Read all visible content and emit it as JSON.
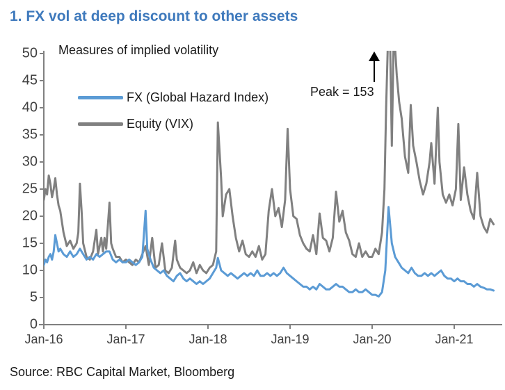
{
  "header": {
    "title": "1. FX vol at deep discount to other assets",
    "title_color": "#3E79BC"
  },
  "footer": {
    "source": "Source: RBC Capital Market, Bloomberg"
  },
  "chart_data": {
    "type": "line",
    "subtitle": "Measures of implied volatility",
    "grid": "off",
    "legend_position": "upper-left-inside",
    "axis_color": "#808080",
    "tick_label_color": "#404040",
    "x_axis": {
      "tick_labels": [
        "Jan-16",
        "Jan-17",
        "Jan-18",
        "Jan-19",
        "Jan-20",
        "Jan-21"
      ],
      "tick_positions_years": [
        0,
        1,
        2,
        3,
        4,
        5
      ],
      "range_years": [
        0,
        5.58
      ]
    },
    "y_axis": {
      "ticks": [
        0,
        5,
        10,
        15,
        20,
        25,
        30,
        35,
        40,
        45,
        50
      ],
      "range": [
        0,
        50
      ]
    },
    "annotation": {
      "text": "Peak = 153",
      "symbol": "up-arrow",
      "refers_to": "Equity (VIX) Mar-2020 spike clipped at top of axis"
    },
    "series": [
      {
        "name": "FX (Global Hazard Index)",
        "color": "#5B9BD5",
        "points": [
          [
            0.0,
            11
          ],
          [
            0.02,
            12
          ],
          [
            0.04,
            11.5
          ],
          [
            0.06,
            12.5
          ],
          [
            0.08,
            13
          ],
          [
            0.1,
            12
          ],
          [
            0.12,
            13.5
          ],
          [
            0.14,
            16.5
          ],
          [
            0.16,
            15
          ],
          [
            0.18,
            13.5
          ],
          [
            0.2,
            14
          ],
          [
            0.24,
            13
          ],
          [
            0.28,
            12.5
          ],
          [
            0.32,
            13.5
          ],
          [
            0.36,
            12.5
          ],
          [
            0.4,
            13
          ],
          [
            0.44,
            14
          ],
          [
            0.48,
            13
          ],
          [
            0.52,
            12
          ],
          [
            0.56,
            12.5
          ],
          [
            0.6,
            12
          ],
          [
            0.64,
            13
          ],
          [
            0.68,
            12.5
          ],
          [
            0.72,
            13
          ],
          [
            0.76,
            13.5
          ],
          [
            0.8,
            13.5
          ],
          [
            0.84,
            12
          ],
          [
            0.88,
            11.5
          ],
          [
            0.92,
            12
          ],
          [
            0.96,
            11.5
          ],
          [
            1.0,
            11.5
          ],
          [
            1.04,
            12
          ],
          [
            1.08,
            11.5
          ],
          [
            1.12,
            11
          ],
          [
            1.16,
            11.5
          ],
          [
            1.2,
            12.5
          ],
          [
            1.24,
            21
          ],
          [
            1.26,
            14
          ],
          [
            1.3,
            12
          ],
          [
            1.34,
            10.5
          ],
          [
            1.38,
            10
          ],
          [
            1.42,
            9.5
          ],
          [
            1.46,
            10
          ],
          [
            1.5,
            9
          ],
          [
            1.54,
            8.5
          ],
          [
            1.58,
            8
          ],
          [
            1.62,
            9
          ],
          [
            1.66,
            9.5
          ],
          [
            1.7,
            8.5
          ],
          [
            1.74,
            8
          ],
          [
            1.78,
            8.5
          ],
          [
            1.82,
            8
          ],
          [
            1.86,
            7.5
          ],
          [
            1.9,
            8
          ],
          [
            1.94,
            7.5
          ],
          [
            1.98,
            8
          ],
          [
            2.02,
            8.5
          ],
          [
            2.06,
            9.5
          ],
          [
            2.1,
            10.5
          ],
          [
            2.12,
            12.3
          ],
          [
            2.16,
            10
          ],
          [
            2.2,
            9.5
          ],
          [
            2.24,
            9
          ],
          [
            2.28,
            9.5
          ],
          [
            2.32,
            9
          ],
          [
            2.36,
            8.5
          ],
          [
            2.4,
            9
          ],
          [
            2.44,
            9.5
          ],
          [
            2.48,
            9
          ],
          [
            2.52,
            9.5
          ],
          [
            2.56,
            9
          ],
          [
            2.6,
            10
          ],
          [
            2.64,
            9
          ],
          [
            2.68,
            9
          ],
          [
            2.72,
            9.5
          ],
          [
            2.76,
            9
          ],
          [
            2.8,
            9.5
          ],
          [
            2.84,
            9
          ],
          [
            2.88,
            9.5
          ],
          [
            2.92,
            10.5
          ],
          [
            2.96,
            9.5
          ],
          [
            3.0,
            9
          ],
          [
            3.04,
            8.5
          ],
          [
            3.08,
            8
          ],
          [
            3.12,
            7.5
          ],
          [
            3.16,
            7
          ],
          [
            3.2,
            7
          ],
          [
            3.24,
            6.5
          ],
          [
            3.28,
            7
          ],
          [
            3.32,
            6.5
          ],
          [
            3.36,
            7.5
          ],
          [
            3.4,
            7
          ],
          [
            3.44,
            6.5
          ],
          [
            3.48,
            6.5
          ],
          [
            3.52,
            7
          ],
          [
            3.56,
            7.5
          ],
          [
            3.6,
            7
          ],
          [
            3.64,
            7
          ],
          [
            3.68,
            6.5
          ],
          [
            3.72,
            6
          ],
          [
            3.76,
            6
          ],
          [
            3.8,
            6.5
          ],
          [
            3.84,
            6
          ],
          [
            3.88,
            6
          ],
          [
            3.92,
            6.5
          ],
          [
            3.96,
            6
          ],
          [
            4.0,
            5.5
          ],
          [
            4.04,
            5.5
          ],
          [
            4.08,
            5.2
          ],
          [
            4.12,
            6
          ],
          [
            4.16,
            10
          ],
          [
            4.2,
            21.7
          ],
          [
            4.24,
            15
          ],
          [
            4.28,
            12.5
          ],
          [
            4.32,
            11.5
          ],
          [
            4.36,
            10.5
          ],
          [
            4.4,
            10
          ],
          [
            4.44,
            9.5
          ],
          [
            4.48,
            10.5
          ],
          [
            4.52,
            9.5
          ],
          [
            4.56,
            9
          ],
          [
            4.6,
            9
          ],
          [
            4.64,
            9.5
          ],
          [
            4.68,
            9
          ],
          [
            4.72,
            9.5
          ],
          [
            4.76,
            9
          ],
          [
            4.8,
            9.5
          ],
          [
            4.84,
            10
          ],
          [
            4.88,
            9
          ],
          [
            4.92,
            8.5
          ],
          [
            4.96,
            8.5
          ],
          [
            5.0,
            8
          ],
          [
            5.04,
            8.5
          ],
          [
            5.08,
            8
          ],
          [
            5.12,
            8
          ],
          [
            5.16,
            7.5
          ],
          [
            5.2,
            7.5
          ],
          [
            5.24,
            7
          ],
          [
            5.28,
            7.5
          ],
          [
            5.32,
            7
          ],
          [
            5.36,
            6.8
          ],
          [
            5.4,
            6.5
          ],
          [
            5.44,
            6.5
          ],
          [
            5.48,
            6.3
          ]
        ]
      },
      {
        "name": "Equity (VIX)",
        "color": "#808080",
        "points": [
          [
            0.0,
            23
          ],
          [
            0.02,
            25
          ],
          [
            0.04,
            24
          ],
          [
            0.06,
            27.5
          ],
          [
            0.08,
            26
          ],
          [
            0.1,
            23.5
          ],
          [
            0.12,
            25
          ],
          [
            0.14,
            27
          ],
          [
            0.16,
            24
          ],
          [
            0.18,
            22
          ],
          [
            0.2,
            21
          ],
          [
            0.24,
            17
          ],
          [
            0.28,
            14.5
          ],
          [
            0.32,
            15.5
          ],
          [
            0.36,
            14
          ],
          [
            0.4,
            15
          ],
          [
            0.42,
            17
          ],
          [
            0.44,
            26
          ],
          [
            0.46,
            21
          ],
          [
            0.48,
            15
          ],
          [
            0.52,
            12.5
          ],
          [
            0.56,
            12
          ],
          [
            0.6,
            13.5
          ],
          [
            0.64,
            17.5
          ],
          [
            0.66,
            13
          ],
          [
            0.7,
            16
          ],
          [
            0.72,
            13.5
          ],
          [
            0.74,
            16
          ],
          [
            0.76,
            14
          ],
          [
            0.8,
            22.5
          ],
          [
            0.82,
            15
          ],
          [
            0.84,
            14
          ],
          [
            0.88,
            12.5
          ],
          [
            0.92,
            12.5
          ],
          [
            0.96,
            11.5
          ],
          [
            1.0,
            12
          ],
          [
            1.04,
            11.5
          ],
          [
            1.08,
            11
          ],
          [
            1.12,
            12
          ],
          [
            1.16,
            11.5
          ],
          [
            1.2,
            13
          ],
          [
            1.24,
            14.5
          ],
          [
            1.28,
            11
          ],
          [
            1.32,
            16
          ],
          [
            1.36,
            10.5
          ],
          [
            1.4,
            11
          ],
          [
            1.44,
            15
          ],
          [
            1.48,
            10
          ],
          [
            1.52,
            9.5
          ],
          [
            1.56,
            10.5
          ],
          [
            1.6,
            15.5
          ],
          [
            1.62,
            12
          ],
          [
            1.66,
            10.5
          ],
          [
            1.7,
            10
          ],
          [
            1.74,
            9.5
          ],
          [
            1.78,
            10
          ],
          [
            1.82,
            11.5
          ],
          [
            1.86,
            9.5
          ],
          [
            1.9,
            11
          ],
          [
            1.94,
            10
          ],
          [
            1.98,
            9.5
          ],
          [
            2.02,
            10.5
          ],
          [
            2.06,
            11
          ],
          [
            2.1,
            13.5
          ],
          [
            2.12,
            37.3
          ],
          [
            2.16,
            27
          ],
          [
            2.18,
            20
          ],
          [
            2.22,
            24
          ],
          [
            2.26,
            25
          ],
          [
            2.3,
            20
          ],
          [
            2.34,
            16
          ],
          [
            2.38,
            13.5
          ],
          [
            2.42,
            15.5
          ],
          [
            2.46,
            13
          ],
          [
            2.5,
            12.5
          ],
          [
            2.54,
            13.5
          ],
          [
            2.58,
            12.5
          ],
          [
            2.62,
            14.5
          ],
          [
            2.66,
            12
          ],
          [
            2.7,
            13
          ],
          [
            2.74,
            21
          ],
          [
            2.78,
            25
          ],
          [
            2.82,
            20
          ],
          [
            2.86,
            21.5
          ],
          [
            2.9,
            18
          ],
          [
            2.94,
            23
          ],
          [
            2.97,
            36.1
          ],
          [
            3.0,
            25
          ],
          [
            3.04,
            20
          ],
          [
            3.08,
            19.5
          ],
          [
            3.12,
            16.5
          ],
          [
            3.16,
            15
          ],
          [
            3.2,
            14
          ],
          [
            3.24,
            13.5
          ],
          [
            3.28,
            16.5
          ],
          [
            3.32,
            13
          ],
          [
            3.36,
            20.5
          ],
          [
            3.4,
            16
          ],
          [
            3.44,
            15.5
          ],
          [
            3.48,
            13.5
          ],
          [
            3.52,
            16
          ],
          [
            3.56,
            24.5
          ],
          [
            3.6,
            19
          ],
          [
            3.64,
            21
          ],
          [
            3.68,
            17
          ],
          [
            3.72,
            15.5
          ],
          [
            3.76,
            13
          ],
          [
            3.8,
            12.5
          ],
          [
            3.84,
            15
          ],
          [
            3.88,
            12.5
          ],
          [
            3.92,
            13.5
          ],
          [
            3.96,
            12.5
          ],
          [
            4.0,
            12.5
          ],
          [
            4.04,
            14
          ],
          [
            4.08,
            13
          ],
          [
            4.12,
            17
          ],
          [
            4.15,
            25
          ],
          [
            4.17,
            40
          ],
          [
            4.19,
            51
          ],
          [
            4.22,
            51
          ],
          [
            4.24,
            33
          ],
          [
            4.26,
            51
          ],
          [
            4.28,
            51
          ],
          [
            4.3,
            46
          ],
          [
            4.33,
            41
          ],
          [
            4.36,
            38
          ],
          [
            4.4,
            31
          ],
          [
            4.44,
            28
          ],
          [
            4.47,
            40.5
          ],
          [
            4.5,
            33
          ],
          [
            4.54,
            30
          ],
          [
            4.58,
            26.5
          ],
          [
            4.62,
            24
          ],
          [
            4.66,
            26
          ],
          [
            4.7,
            30
          ],
          [
            4.72,
            33.5
          ],
          [
            4.76,
            26
          ],
          [
            4.8,
            40
          ],
          [
            4.82,
            30
          ],
          [
            4.86,
            24
          ],
          [
            4.9,
            22.5
          ],
          [
            4.94,
            24
          ],
          [
            4.98,
            22
          ],
          [
            5.02,
            25
          ],
          [
            5.05,
            37
          ],
          [
            5.08,
            23
          ],
          [
            5.12,
            29
          ],
          [
            5.16,
            24
          ],
          [
            5.2,
            21
          ],
          [
            5.24,
            19.5
          ],
          [
            5.28,
            28
          ],
          [
            5.32,
            20
          ],
          [
            5.36,
            18
          ],
          [
            5.4,
            17
          ],
          [
            5.44,
            19.5
          ],
          [
            5.48,
            18.5
          ]
        ]
      }
    ]
  }
}
